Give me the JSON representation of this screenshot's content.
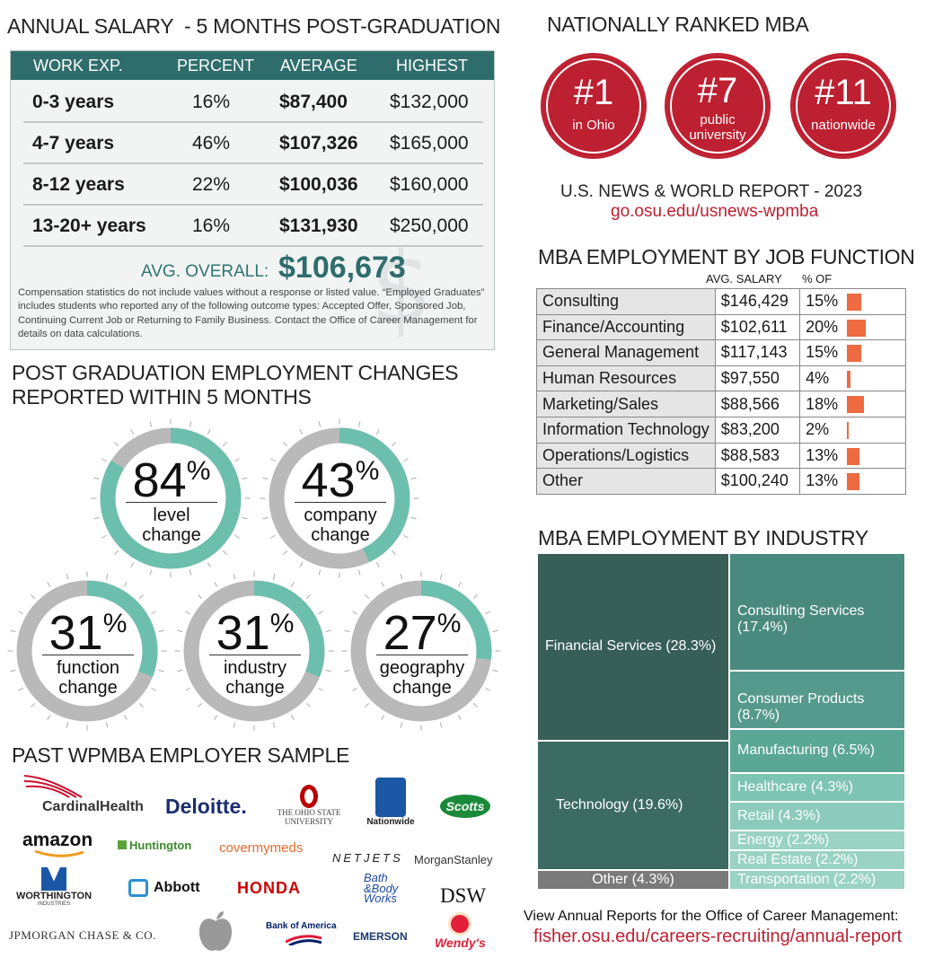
{
  "salary": {
    "title": "ANNUAL SALARY  - 5 MONTHS POST-GRADUATION",
    "headers": [
      "WORK EXP.",
      "PERCENT",
      "AVERAGE",
      "HIGHEST"
    ],
    "rows": [
      [
        "0-3 years",
        "16%",
        "$87,400",
        "$132,000"
      ],
      [
        "4-7 years",
        "46%",
        "$107,326",
        "$165,000"
      ],
      [
        "8-12 years",
        "22%",
        "$100,036",
        "$160,000"
      ],
      [
        "13-20+ years",
        "16%",
        "$131,930",
        "$250,000"
      ]
    ],
    "avg_label": "AVG. OVERALL:",
    "avg_value": "$106,673",
    "note": "Compensation statistics do not include values without a response or listed value. “Employed Graduates” includes students who reported any of the following outcome types: Accepted Offer, Sponsored Job, Continuing Current Job or Returning to Family Business. Contact the Office of Career Management for details on data calculations."
  },
  "rankings": {
    "title": "NATIONALLY RANKED MBA",
    "items": [
      {
        "rank": "#1",
        "text": "in Ohio"
      },
      {
        "rank": "#7",
        "text1": "public",
        "text2": "university"
      },
      {
        "rank": "#11",
        "text": "nationwide"
      }
    ],
    "source": "U.S. NEWS & WORLD REPORT - 2023",
    "link": "go.osu.edu/usnews-wpmba",
    "link_color": "#bd2031"
  },
  "changes": {
    "title1": "POST GRADUATION EMPLOYMENT CHANGES",
    "title2": "REPORTED WITHIN 5 MONTHS",
    "items": [
      {
        "pct": "84",
        "sym": "%",
        "l1": "level",
        "l2": "change"
      },
      {
        "pct": "43",
        "sym": "%",
        "l1": "company",
        "l2": "change"
      },
      {
        "pct": "31",
        "sym": "%",
        "l1": "function",
        "l2": "change"
      },
      {
        "pct": "31",
        "sym": "%",
        "l1": "industry",
        "l2": "change"
      },
      {
        "pct": "27",
        "sym": "%",
        "l1": "geography",
        "l2": "change"
      }
    ]
  },
  "job_function": {
    "title": "MBA EMPLOYMENT BY JOB FUNCTION",
    "col_salary": "AVG. SALARY",
    "col_pct": "% OF",
    "rows": [
      {
        "name": "Consulting",
        "salary": "$146,429",
        "pct": "15%"
      },
      {
        "name": "Finance/Accounting",
        "salary": "$102,611",
        "pct": "20%"
      },
      {
        "name": "General Management",
        "salary": "$117,143",
        "pct": "15%"
      },
      {
        "name": "Human Resources",
        "salary": "$97,550",
        "pct": "4%"
      },
      {
        "name": "Marketing/Sales",
        "salary": "$88,566",
        "pct": "18%"
      },
      {
        "name": "Information Technology",
        "salary": "$83,200",
        "pct": "2%"
      },
      {
        "name": "Operations/Logistics",
        "salary": "$88,583",
        "pct": "13%"
      },
      {
        "name": "Other",
        "salary": "$100,240",
        "pct": "13%"
      }
    ],
    "bar_color": "#ee6a40"
  },
  "industry": {
    "title": "MBA EMPLOYMENT BY INDUSTRY",
    "items": [
      "Financial Services (28.3%)",
      "Technology (19.6%)",
      "Other (4.3%)",
      "Consulting Services (17.4%)",
      "Consumer Products (8.7%)",
      "Manufacturing (6.5%)",
      "Healthcare (4.3%)",
      "Retail (4.3%)",
      "Energy (2.2%)",
      "Real Estate (2.2%)",
      "Transportation (2.2%)"
    ]
  },
  "employers": {
    "title": "PAST WPMBA EMPLOYER SAMPLE",
    "cardinal": "CardinalHealth",
    "deloitte": "Deloitte.",
    "osu_1": "THE OHIO STATE",
    "osu_2": "UNIVERSITY",
    "nationwide": "Nationwide",
    "scotts": "Scotts",
    "amazon": "amazon",
    "huntington": "Huntington",
    "covermymeds": "covermymeds",
    "netjets": "NETJETS",
    "morgan": "MorganStanley",
    "worthington_1": "WORTHINGTON",
    "worthington_2": "INDUSTRIES",
    "abbott": "Abbott",
    "honda": "HONDA",
    "bbw_1": "Bath",
    "bbw_2": "&Body",
    "bbw_3": "Works",
    "dsw": "DSW",
    "jpm": "JPMORGAN CHASE & CO.",
    "boa": "Bank of America",
    "emerson": "EMERSON",
    "wendys": "Wendy's"
  },
  "footer": {
    "text": "View Annual Reports for the Office of Career Management:",
    "link": "fisher.osu.edu/careers-recruiting/annual-report"
  },
  "chart_data": [
    {
      "type": "table",
      "title": "ANNUAL SALARY  - 5 MONTHS POST-GRADUATION",
      "columns": [
        "WORK EXP.",
        "PERCENT",
        "AVERAGE",
        "HIGHEST"
      ],
      "rows": [
        [
          "0-3 years",
          16,
          87400,
          132000
        ],
        [
          "4-7 years",
          46,
          107326,
          165000
        ],
        [
          "8-12 years",
          22,
          100036,
          160000
        ],
        [
          "13-20+ years",
          16,
          131930,
          250000
        ]
      ]
    },
    {
      "type": "pie",
      "title": "POST GRADUATION EMPLOYMENT CHANGES REPORTED WITHIN 5 MONTHS",
      "categories": [
        "level change",
        "company change",
        "function change",
        "industry change",
        "geography change"
      ],
      "values": [
        84,
        43,
        31,
        31,
        27
      ],
      "colors": {
        "filled": "#6dbfad",
        "remaining": "#b9b9b9"
      }
    },
    {
      "type": "bar",
      "title": "MBA EMPLOYMENT BY JOB FUNCTION",
      "categories": [
        "Consulting",
        "Finance/Accounting",
        "General Management",
        "Human Resources",
        "Marketing/Sales",
        "Information Technology",
        "Operations/Logistics",
        "Other"
      ],
      "values": [
        15,
        20,
        15,
        4,
        18,
        2,
        13,
        13
      ],
      "avg_salary": [
        146429,
        102611,
        117143,
        97550,
        88566,
        83200,
        88583,
        100240
      ]
    },
    {
      "type": "heatmap",
      "title": "MBA EMPLOYMENT BY INDUSTRY",
      "categories": [
        "Financial Services",
        "Technology",
        "Other",
        "Consulting Services",
        "Consumer Products",
        "Manufacturing",
        "Healthcare",
        "Retail",
        "Energy",
        "Real Estate",
        "Transportation"
      ],
      "values": [
        28.3,
        19.6,
        4.3,
        17.4,
        8.7,
        6.5,
        4.3,
        4.3,
        2.2,
        2.2,
        2.2
      ]
    }
  ]
}
